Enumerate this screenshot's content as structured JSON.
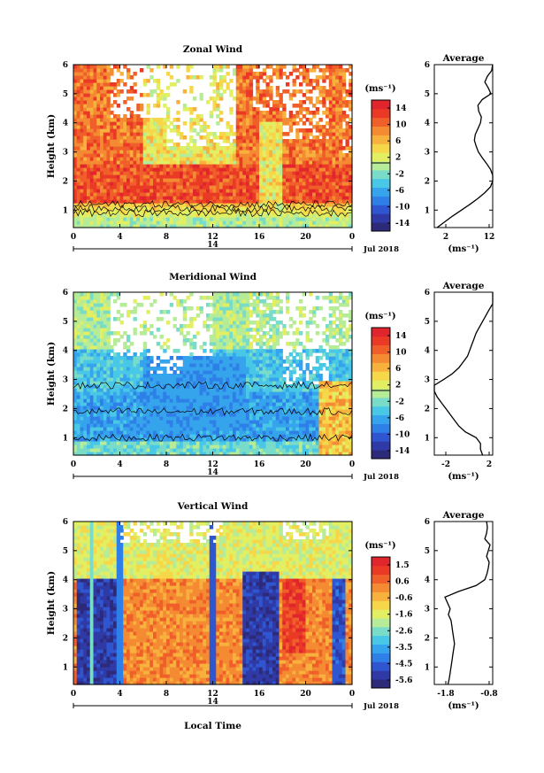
{
  "panels": [
    {
      "title": "Zonal Wind",
      "ylabel": "Height (km)",
      "units": "(ms⁻¹)",
      "cbar_ticks": [
        "14",
        "10",
        "6",
        "2",
        "-2",
        "-6",
        "-10",
        "-14"
      ],
      "profile_title": "Average",
      "profile_xticks": [
        "2",
        "12"
      ],
      "profile_xlabel": "(ms⁻¹)"
    },
    {
      "title": "Meridional Wind",
      "ylabel": "Height (km)",
      "units": "(ms⁻¹)",
      "cbar_ticks": [
        "14",
        "10",
        "6",
        "2",
        "-2",
        "-6",
        "-10",
        "-14"
      ],
      "profile_title": "Average",
      "profile_xticks": [
        "-2",
        "2"
      ],
      "profile_xlabel": "(ms⁻¹)"
    },
    {
      "title": "Vertical Wind",
      "ylabel": "Height (km)",
      "units": "(ms⁻¹)",
      "cbar_ticks": [
        "1.5",
        "0.6",
        "-0.6",
        "-1.6",
        "-2.6",
        "-3.5",
        "-4.5",
        "-5.6"
      ],
      "profile_title": "Average",
      "profile_xticks": [
        "-1.8",
        "-0.8"
      ],
      "profile_xlabel": "(ms⁻¹)"
    }
  ],
  "xticks": [
    "0",
    "4",
    "8",
    "12",
    "16",
    "20",
    "0"
  ],
  "yticks": [
    "1",
    "2",
    "3",
    "4",
    "5",
    "6"
  ],
  "day_label": "14",
  "month_label": "Jul 2018",
  "xlabel": "Local Time",
  "colors": [
    "#2e2a7a",
    "#2f3aa6",
    "#2f56d0",
    "#2f7fe8",
    "#35a4ec",
    "#48c7e6",
    "#79dcc8",
    "#b6ec98",
    "#e2ef62",
    "#f6d74a",
    "#f7b13c",
    "#f48b32",
    "#f05f2a",
    "#ea3a26",
    "#e0252c"
  ],
  "chart_data": [
    {
      "type": "heatmap",
      "title": "Zonal Wind",
      "xlabel": "",
      "ylabel": "Height (km)",
      "xlim": [
        0,
        24
      ],
      "ylim": [
        0.4,
        6
      ],
      "colorbar_range": [
        -14,
        14
      ],
      "colorbar_ticks": [
        14,
        10,
        6,
        2,
        -2,
        -6,
        -10,
        -14
      ],
      "profile": {
        "title": "Average",
        "xticks": [
          2,
          12
        ],
        "height": [
          0.4,
          0.6,
          0.8,
          1.0,
          1.2,
          1.4,
          1.6,
          1.8,
          2.0,
          2.2,
          2.4,
          2.6,
          2.8,
          3.0,
          3.2,
          3.4,
          3.6,
          3.8,
          4.0,
          4.2,
          4.4,
          4.6,
          4.8,
          5.0,
          5.2,
          5.4,
          5.6,
          5.8,
          6.0
        ],
        "values": [
          0.0,
          1.8,
          3.6,
          5.6,
          7.6,
          9.4,
          11.0,
          12.3,
          13.2,
          13.0,
          12.3,
          11.4,
          10.4,
          9.5,
          9.0,
          8.6,
          8.8,
          9.4,
          10.0,
          10.2,
          9.6,
          9.4,
          10.4,
          12.4,
          11.8,
          11.0,
          11.6,
          12.6,
          12.8
        ]
      }
    },
    {
      "type": "heatmap",
      "title": "Meridional Wind",
      "xlabel": "",
      "ylabel": "Height (km)",
      "xlim": [
        0,
        24
      ],
      "ylim": [
        0.4,
        6
      ],
      "colorbar_range": [
        -14,
        14
      ],
      "colorbar_ticks": [
        14,
        10,
        6,
        2,
        -2,
        -6,
        -10,
        -14
      ],
      "profile": {
        "title": "Average",
        "xticks": [
          -2,
          2
        ],
        "height": [
          0.4,
          0.6,
          0.8,
          1.0,
          1.2,
          1.4,
          1.6,
          1.8,
          2.0,
          2.2,
          2.4,
          2.6,
          2.8,
          3.0,
          3.2,
          3.4,
          3.6,
          3.8,
          4.0,
          4.2,
          4.4,
          4.6,
          4.8,
          5.0,
          5.2,
          5.4,
          5.6,
          5.8,
          6.0
        ],
        "values": [
          1.4,
          1.2,
          1.2,
          0.8,
          -0.2,
          -0.8,
          -1.2,
          -1.6,
          -2.0,
          -2.4,
          -2.8,
          -3.2,
          -3.6,
          -2.2,
          -1.4,
          -0.8,
          -0.4,
          0.0,
          0.2,
          0.4,
          0.6,
          0.8,
          1.1,
          1.4,
          1.7,
          2.0,
          2.4,
          2.8,
          3.0
        ]
      }
    },
    {
      "type": "heatmap",
      "title": "Vertical Wind",
      "xlabel": "Local Time",
      "ylabel": "Height (km)",
      "xlim": [
        0,
        24
      ],
      "ylim": [
        0.4,
        6
      ],
      "colorbar_range": [
        -5.6,
        1.5
      ],
      "colorbar_ticks": [
        1.5,
        0.6,
        -0.6,
        -1.6,
        -2.6,
        -3.5,
        -4.5,
        -5.6
      ],
      "profile": {
        "title": "Average",
        "xticks": [
          -1.8,
          -0.8
        ],
        "height": [
          0.4,
          0.6,
          0.8,
          1.0,
          1.2,
          1.4,
          1.6,
          1.8,
          2.0,
          2.2,
          2.4,
          2.6,
          2.8,
          3.0,
          3.2,
          3.4,
          3.6,
          3.8,
          4.0,
          4.2,
          4.4,
          4.6,
          4.8,
          5.0,
          5.2,
          5.4,
          5.6,
          5.8,
          6.0
        ],
        "values": [
          -1.75,
          -1.72,
          -1.7,
          -1.68,
          -1.66,
          -1.64,
          -1.62,
          -1.6,
          -1.62,
          -1.64,
          -1.66,
          -1.68,
          -1.74,
          -1.7,
          -1.76,
          -1.82,
          -1.5,
          -1.1,
          -0.9,
          -0.85,
          -0.82,
          -0.8,
          -0.86,
          -0.82,
          -0.78,
          -0.9,
          -0.86,
          -0.84,
          -0.86
        ]
      }
    }
  ]
}
